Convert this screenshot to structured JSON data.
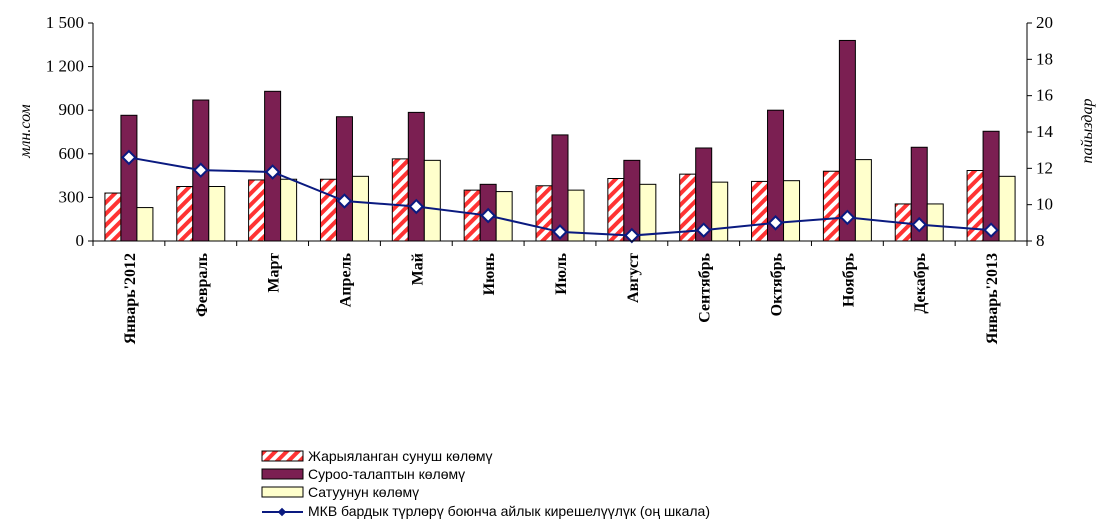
{
  "chart_data": {
    "type": "bar",
    "categories": [
      "Январь'2012",
      "Февраль",
      "Март",
      "Апрель",
      "Май",
      "Июнь",
      "Июль",
      "Август",
      "Сентябрь",
      "Октябрь",
      "Ноябрь",
      "Декабрь",
      "Январь'2013"
    ],
    "series": [
      {
        "name": "Жарыяланган сунуш көлөмү",
        "type": "bar",
        "axis": "left",
        "values": [
          330,
          375,
          420,
          425,
          565,
          350,
          380,
          430,
          460,
          410,
          480,
          255,
          485
        ]
      },
      {
        "name": "Суроо-талаптын көлөмү",
        "type": "bar",
        "axis": "left",
        "values": [
          865,
          970,
          1030,
          855,
          885,
          390,
          730,
          555,
          640,
          900,
          1380,
          645,
          755
        ]
      },
      {
        "name": "Сатуунун көлөмү",
        "type": "bar",
        "axis": "left",
        "values": [
          230,
          375,
          425,
          445,
          555,
          340,
          350,
          390,
          405,
          415,
          560,
          255,
          445
        ]
      },
      {
        "name": "МКВ бардык түрлөрү боюнча айлык кирешелүүлүк (оң шкала)",
        "type": "line",
        "axis": "right",
        "values": [
          12.6,
          11.9,
          11.8,
          10.2,
          9.9,
          9.4,
          8.5,
          8.3,
          8.6,
          9.0,
          9.3,
          8.9,
          8.6
        ]
      }
    ],
    "ylabel": "млн.сом",
    "y2label": "пайыздар",
    "ylim": [
      0,
      1500
    ],
    "y2lim": [
      8,
      20
    ],
    "yticks": [
      "0",
      "300",
      "600",
      "900",
      "1 200",
      "1 500"
    ],
    "y2ticks": [
      "8",
      "10",
      "12",
      "14",
      "16",
      "18",
      "20"
    ],
    "legend_position": "bottom",
    "colors": {
      "offer_stripe": "#ff3333",
      "demand": "#7b1f52",
      "sales": "#ffffcc",
      "line": "#0a1a80",
      "marker": "#0a1a80"
    }
  }
}
